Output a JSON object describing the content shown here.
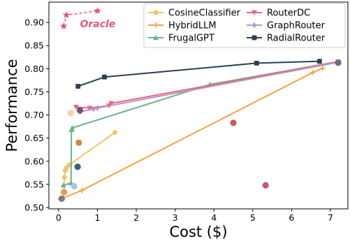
{
  "chart_data": {
    "type": "line",
    "xlabel": "Cost ($)",
    "ylabel": "Performance",
    "xlim": [
      -0.25,
      7.45
    ],
    "ylim": [
      0.497,
      0.944
    ],
    "x_ticks": [
      0,
      1,
      2,
      3,
      4,
      5,
      6,
      7
    ],
    "y_ticks": [
      0.5,
      0.55,
      0.6,
      0.65,
      0.7,
      0.75,
      0.8,
      0.85,
      0.9
    ],
    "grid": false,
    "legend_position": "top-right",
    "series": [
      {
        "name": "CosineClassifier",
        "color": "#f0c66f",
        "marker": "circle",
        "points": [
          [
            0.1,
            0.519
          ],
          [
            0.14,
            0.535
          ],
          [
            0.15,
            0.565
          ],
          [
            0.17,
            0.58
          ],
          [
            0.2,
            0.585
          ],
          [
            0.27,
            0.592
          ],
          [
            1.45,
            0.662
          ]
        ]
      },
      {
        "name": "HybridLLM",
        "color": "#f7a23b",
        "marker": "plus",
        "points": [
          [
            0.05,
            0.518
          ],
          [
            0.6,
            0.537
          ],
          [
            6.55,
            0.792
          ],
          [
            6.8,
            0.801
          ]
        ]
      },
      {
        "name": "FrugalGPT",
        "color": "#6cb38a",
        "marker": "triangle-up",
        "points": [
          [
            0.12,
            0.548
          ],
          [
            0.32,
            0.553
          ],
          [
            0.33,
            0.668
          ],
          [
            0.35,
            0.672
          ],
          [
            3.9,
            0.766
          ],
          [
            7.18,
            0.815
          ]
        ]
      },
      {
        "name": "RouterDC",
        "color": "#e8697a",
        "marker": "triangle-down",
        "points": [
          [
            0.45,
            0.717
          ],
          [
            0.8,
            0.715
          ],
          [
            1.3,
            0.72
          ],
          [
            1.35,
            0.725
          ],
          [
            7.2,
            0.815
          ]
        ]
      },
      {
        "name": "GraphRouter",
        "color": "#b694c8",
        "marker": "diamond",
        "points": [
          [
            0.55,
            0.707
          ],
          [
            0.9,
            0.713
          ],
          [
            1.0,
            0.715
          ],
          [
            7.2,
            0.814
          ]
        ]
      },
      {
        "name": "RadialRouter",
        "color": "#2a3f54",
        "marker": "square",
        "points": [
          [
            0.5,
            0.762
          ],
          [
            1.18,
            0.782
          ],
          [
            5.1,
            0.812
          ],
          [
            6.72,
            0.816
          ]
        ]
      }
    ],
    "extra_points": [
      {
        "x": 0.08,
        "y": 0.519,
        "color": "#7b7b8c"
      },
      {
        "x": 0.14,
        "y": 0.533,
        "color": "#e8985a"
      },
      {
        "x": 0.31,
        "y": 0.704,
        "color": "#f6d3a4"
      },
      {
        "x": 0.4,
        "y": 0.546,
        "color": "#a7c6e6"
      },
      {
        "x": 0.49,
        "y": 0.588,
        "color": "#3f5e74"
      },
      {
        "x": 0.52,
        "y": 0.64,
        "color": "#d5873f"
      },
      {
        "x": 0.55,
        "y": 0.71,
        "color": "#7a4f80"
      },
      {
        "x": 4.5,
        "y": 0.683,
        "color": "#c46150"
      },
      {
        "x": 5.33,
        "y": 0.548,
        "color": "#c0567f"
      },
      {
        "x": 7.2,
        "y": 0.813,
        "color": "#7a6586"
      }
    ],
    "oracle": {
      "label": "Oracle",
      "color": "#e05a73",
      "points": [
        [
          0.13,
          0.892
        ],
        [
          0.2,
          0.916
        ],
        [
          1.0,
          0.925
        ]
      ]
    }
  }
}
